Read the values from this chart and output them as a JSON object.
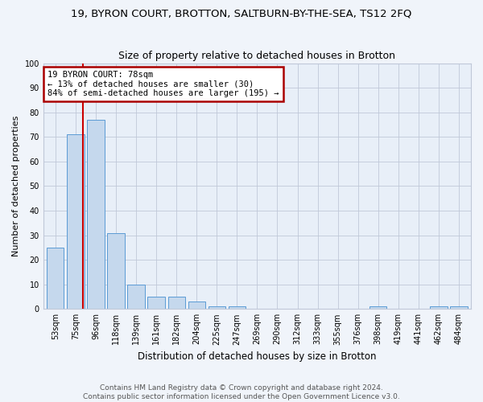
{
  "title": "19, BYRON COURT, BROTTON, SALTBURN-BY-THE-SEA, TS12 2FQ",
  "subtitle": "Size of property relative to detached houses in Brotton",
  "xlabel": "Distribution of detached houses by size in Brotton",
  "ylabel": "Number of detached properties",
  "categories": [
    "53sqm",
    "75sqm",
    "96sqm",
    "118sqm",
    "139sqm",
    "161sqm",
    "182sqm",
    "204sqm",
    "225sqm",
    "247sqm",
    "269sqm",
    "290sqm",
    "312sqm",
    "333sqm",
    "355sqm",
    "376sqm",
    "398sqm",
    "419sqm",
    "441sqm",
    "462sqm",
    "484sqm"
  ],
  "values": [
    25,
    71,
    77,
    31,
    10,
    5,
    5,
    3,
    1,
    1,
    0,
    0,
    0,
    0,
    0,
    0,
    1,
    0,
    0,
    1,
    1
  ],
  "bar_color": "#c5d8ed",
  "bar_edge_color": "#5b9bd5",
  "bg_color": "#e8eff8",
  "grid_color": "#c0c8d8",
  "vline_x": 1.35,
  "vline_color": "#cc0000",
  "annotation_line1": "19 BYRON COURT: 78sqm",
  "annotation_line2": "← 13% of detached houses are smaller (30)",
  "annotation_line3": "84% of semi-detached houses are larger (195) →",
  "annotation_box_color": "#aa0000",
  "annotation_bg": "#ffffff",
  "ylim": [
    0,
    100
  ],
  "yticks": [
    0,
    10,
    20,
    30,
    40,
    50,
    60,
    70,
    80,
    90,
    100
  ],
  "footer_line1": "Contains HM Land Registry data © Crown copyright and database right 2024.",
  "footer_line2": "Contains public sector information licensed under the Open Government Licence v3.0.",
  "title_fontsize": 9.5,
  "subtitle_fontsize": 9,
  "tick_fontsize": 7,
  "ylabel_fontsize": 8,
  "xlabel_fontsize": 8.5,
  "annotation_fontsize": 7.5,
  "footer_fontsize": 6.5
}
